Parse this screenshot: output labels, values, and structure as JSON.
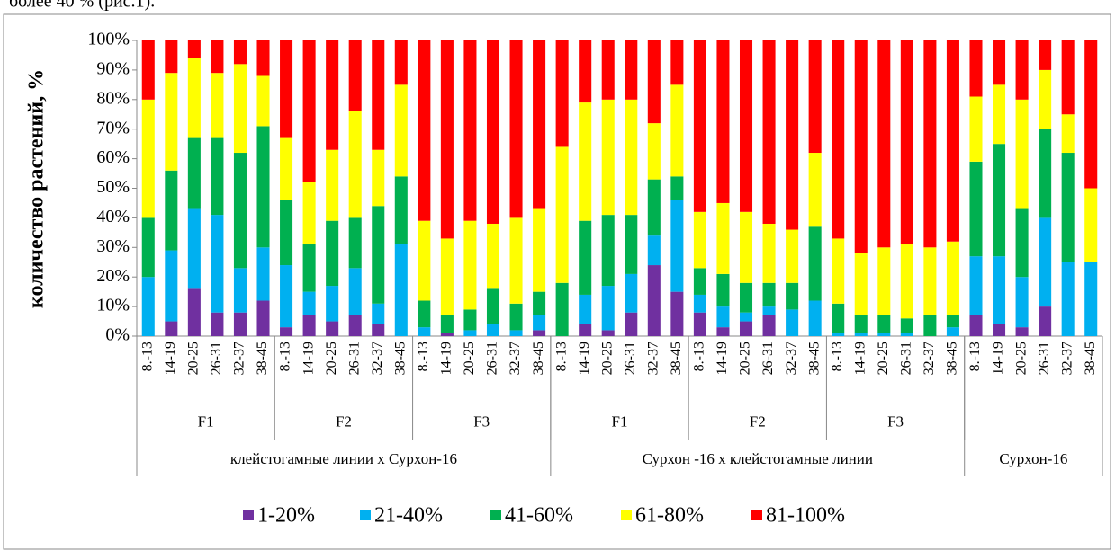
{
  "top_text": "более 40 % (рис.1).",
  "chart_data": {
    "type": "stacked-bar",
    "y_axis_label": "количество растений, %",
    "ylim": [
      0,
      100
    ],
    "yticks": [
      {
        "value": 0,
        "label": "0%"
      },
      {
        "value": 10,
        "label": "10%"
      },
      {
        "value": 20,
        "label": "20%"
      },
      {
        "value": 30,
        "label": "30%"
      },
      {
        "value": 40,
        "label": "40%"
      },
      {
        "value": 50,
        "label": "50%"
      },
      {
        "value": 60,
        "label": "60%"
      },
      {
        "value": 70,
        "label": "70%"
      },
      {
        "value": 80,
        "label": "80%"
      },
      {
        "value": 90,
        "label": "90%"
      },
      {
        "value": 100,
        "label": "100%"
      }
    ],
    "grid": false,
    "legend": "bottom",
    "groups": [
      {
        "name": "клейстогамные линии x Сурхон-16",
        "subgroups": [
          {
            "name": "F1",
            "categories": [
              "8.-13",
              "14-19",
              "20-25",
              "26-31",
              "32-37",
              "38-45"
            ]
          },
          {
            "name": "F2",
            "categories": [
              "8.-13",
              "14-19",
              "20-25",
              "26-31",
              "32-37",
              "38-45"
            ]
          },
          {
            "name": "F3",
            "categories": [
              "8.-13",
              "14-19",
              "20-25",
              "26-31",
              "32-37",
              "38-45"
            ]
          }
        ]
      },
      {
        "name": "Сурхон -16 х клейстогамные линии",
        "subgroups": [
          {
            "name": "F1",
            "categories": [
              "8.-13",
              "14-19",
              "20-25",
              "26-31",
              "32-37",
              "38-45"
            ]
          },
          {
            "name": "F2",
            "categories": [
              "8.-13",
              "14-19",
              "20-25",
              "26-31",
              "32-37",
              "38-45"
            ]
          },
          {
            "name": "F3",
            "categories": [
              "8.-13",
              "14-19",
              "20-25",
              "26-31",
              "32-37",
              "38-45"
            ]
          }
        ]
      },
      {
        "name": "Сурхон-16",
        "subgroups": [
          {
            "name": null,
            "categories": [
              "8.-13",
              "14-19",
              "20-25",
              "26-31",
              "32-37",
              "38-45"
            ]
          }
        ]
      }
    ],
    "series": [
      {
        "name": "1-20%",
        "color": "#7030a0",
        "values": [
          0,
          5,
          16,
          8,
          8,
          12,
          3,
          7,
          5,
          7,
          4,
          0,
          0,
          1,
          0,
          0,
          0,
          2,
          0,
          4,
          2,
          8,
          24,
          15,
          8,
          3,
          5,
          7,
          0,
          0,
          0,
          0,
          0,
          0,
          0,
          0,
          7,
          4,
          3,
          10,
          0,
          0
        ]
      },
      {
        "name": "21-40%",
        "color": "#00b0f0",
        "values": [
          20,
          24,
          27,
          33,
          15,
          18,
          21,
          8,
          12,
          16,
          7,
          31,
          3,
          0,
          2,
          4,
          2,
          5,
          0,
          10,
          15,
          13,
          10,
          31,
          6,
          7,
          3,
          3,
          9,
          12,
          1,
          1,
          1,
          1,
          0,
          3,
          20,
          23,
          17,
          30,
          25,
          25
        ]
      },
      {
        "name": "41-60%",
        "color": "#00b050",
        "values": [
          20,
          27,
          24,
          26,
          39,
          41,
          22,
          16,
          22,
          17,
          33,
          23,
          9,
          6,
          7,
          12,
          9,
          8,
          18,
          25,
          24,
          20,
          19,
          8,
          9,
          11,
          10,
          8,
          9,
          25,
          10,
          6,
          6,
          5,
          7,
          4,
          32,
          38,
          23,
          30,
          37,
          0
        ]
      },
      {
        "name": "61-80%",
        "color": "#ffff00",
        "values": [
          40,
          33,
          27,
          22,
          30,
          17,
          21,
          21,
          24,
          36,
          19,
          31,
          27,
          26,
          30,
          22,
          29,
          28,
          46,
          40,
          39,
          39,
          19,
          31,
          19,
          24,
          24,
          20,
          18,
          25,
          22,
          21,
          23,
          25,
          23,
          25,
          22,
          20,
          37,
          20,
          13,
          25
        ]
      },
      {
        "name": "81-100%",
        "color": "#ff0000",
        "values": [
          20,
          11,
          6,
          11,
          8,
          12,
          33,
          48,
          37,
          24,
          37,
          15,
          61,
          67,
          61,
          62,
          60,
          57,
          36,
          21,
          20,
          20,
          28,
          15,
          58,
          55,
          58,
          62,
          64,
          38,
          67,
          72,
          70,
          69,
          70,
          68,
          19,
          15,
          20,
          10,
          25,
          50
        ]
      }
    ]
  }
}
